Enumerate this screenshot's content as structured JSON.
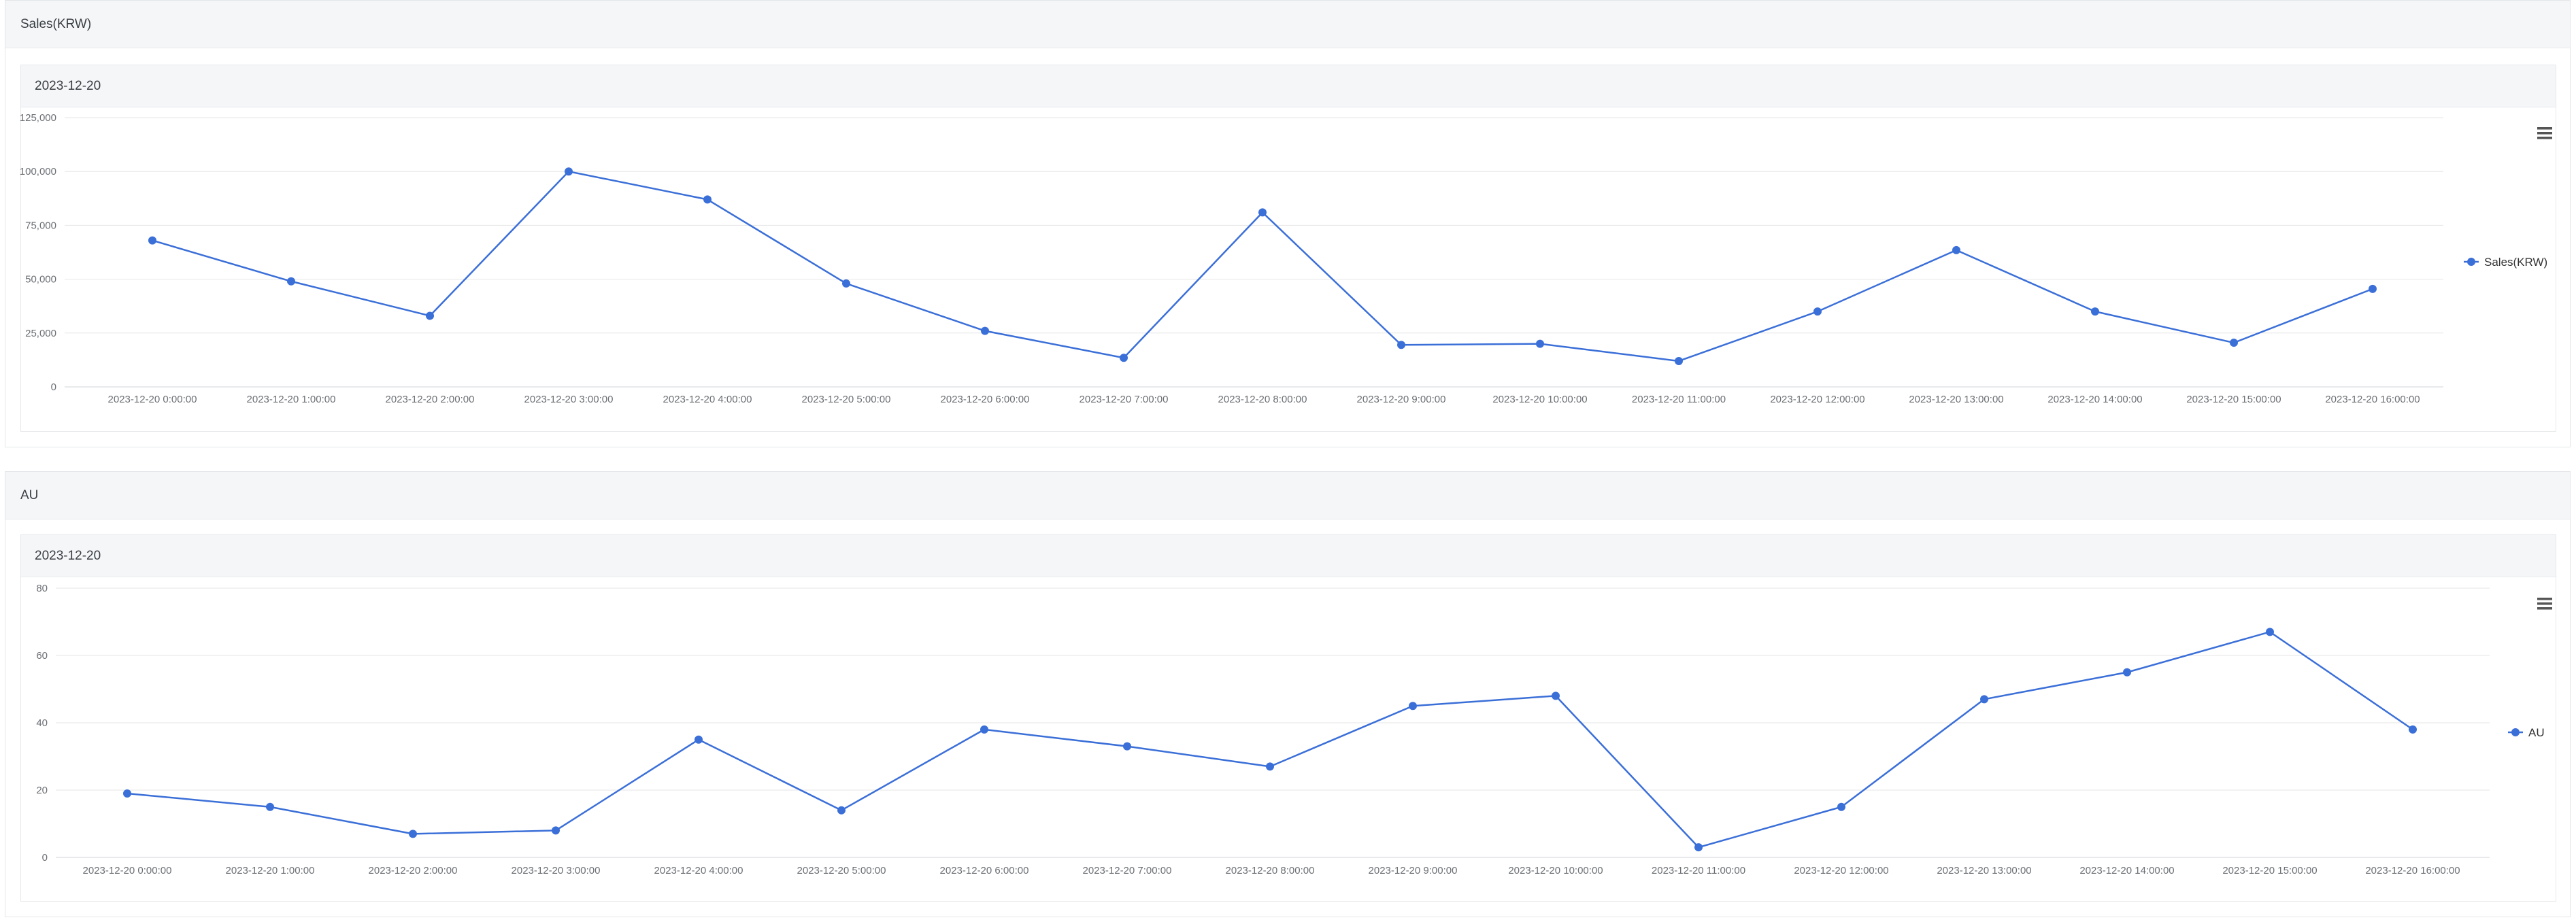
{
  "panels": [
    {
      "title": "Sales(KRW)",
      "card_title": "2023-12-20"
    },
    {
      "title": "AU",
      "card_title": "2023-12-20"
    }
  ],
  "accent_color": "#3b6fd8",
  "menu_icon": "hamburger-menu-icon",
  "chart_data": [
    {
      "type": "line",
      "title": "",
      "xlabel": "",
      "ylabel": "",
      "legend_position": "right",
      "grid": true,
      "ylim": [
        0,
        125000
      ],
      "yticks": [
        "0",
        "25,000",
        "50,000",
        "75,000",
        "100,000",
        "125,000"
      ],
      "yticks_values": [
        0,
        25000,
        50000,
        75000,
        100000,
        125000
      ],
      "categories": [
        "2023-12-20 0:00:00",
        "2023-12-20 1:00:00",
        "2023-12-20 2:00:00",
        "2023-12-20 3:00:00",
        "2023-12-20 4:00:00",
        "2023-12-20 5:00:00",
        "2023-12-20 6:00:00",
        "2023-12-20 7:00:00",
        "2023-12-20 8:00:00",
        "2023-12-20 9:00:00",
        "2023-12-20 10:00:00",
        "2023-12-20 11:00:00",
        "2023-12-20 12:00:00",
        "2023-12-20 13:00:00",
        "2023-12-20 14:00:00",
        "2023-12-20 15:00:00",
        "2023-12-20 16:00:00"
      ],
      "series": [
        {
          "name": "Sales(KRW)",
          "values": [
            68000,
            49000,
            33000,
            100000,
            87000,
            48000,
            26000,
            13500,
            81000,
            19500,
            20000,
            12000,
            35000,
            63500,
            35000,
            20500,
            45500
          ]
        }
      ]
    },
    {
      "type": "line",
      "title": "",
      "xlabel": "",
      "ylabel": "",
      "legend_position": "right",
      "grid": true,
      "ylim": [
        0,
        80
      ],
      "yticks": [
        "0",
        "20",
        "40",
        "60",
        "80"
      ],
      "yticks_values": [
        0,
        20,
        40,
        60,
        80
      ],
      "categories": [
        "2023-12-20 0:00:00",
        "2023-12-20 1:00:00",
        "2023-12-20 2:00:00",
        "2023-12-20 3:00:00",
        "2023-12-20 4:00:00",
        "2023-12-20 5:00:00",
        "2023-12-20 6:00:00",
        "2023-12-20 7:00:00",
        "2023-12-20 8:00:00",
        "2023-12-20 9:00:00",
        "2023-12-20 10:00:00",
        "2023-12-20 11:00:00",
        "2023-12-20 12:00:00",
        "2023-12-20 13:00:00",
        "2023-12-20 14:00:00",
        "2023-12-20 15:00:00",
        "2023-12-20 16:00:00"
      ],
      "series": [
        {
          "name": "AU",
          "values": [
            19,
            15,
            7,
            8,
            35,
            14,
            38,
            33,
            27,
            45,
            48,
            3,
            15,
            47,
            55,
            67,
            38
          ]
        }
      ]
    }
  ]
}
